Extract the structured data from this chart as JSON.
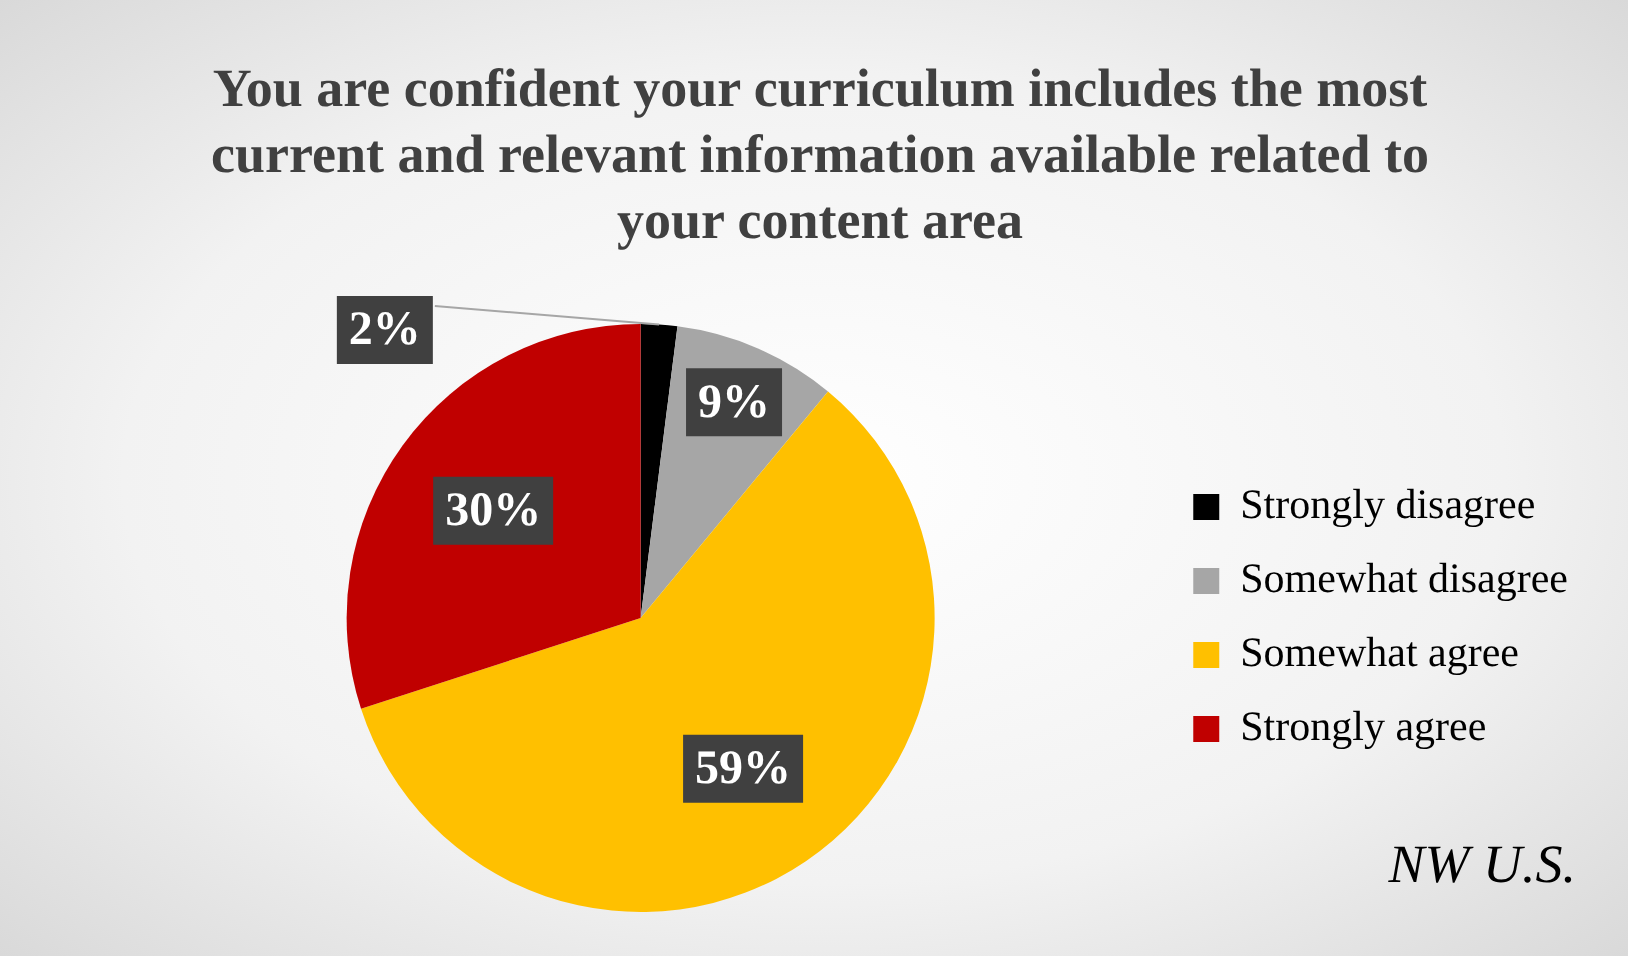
{
  "chart_data": {
    "type": "pie",
    "title": "You are confident your curriculum includes the most current and relevant information available related to your content area",
    "categories": [
      "Strongly disagree",
      "Somewhat disagree",
      "Somewhat agree",
      "Strongly agree"
    ],
    "values": [
      2,
      9,
      59,
      30
    ],
    "colors": [
      "#000000",
      "#a6a6a6",
      "#ffc000",
      "#c00000"
    ],
    "value_labels": [
      "2%",
      "9%",
      "59%",
      "30%"
    ],
    "legend": "right",
    "annotations": [
      "NW U.S."
    ]
  }
}
